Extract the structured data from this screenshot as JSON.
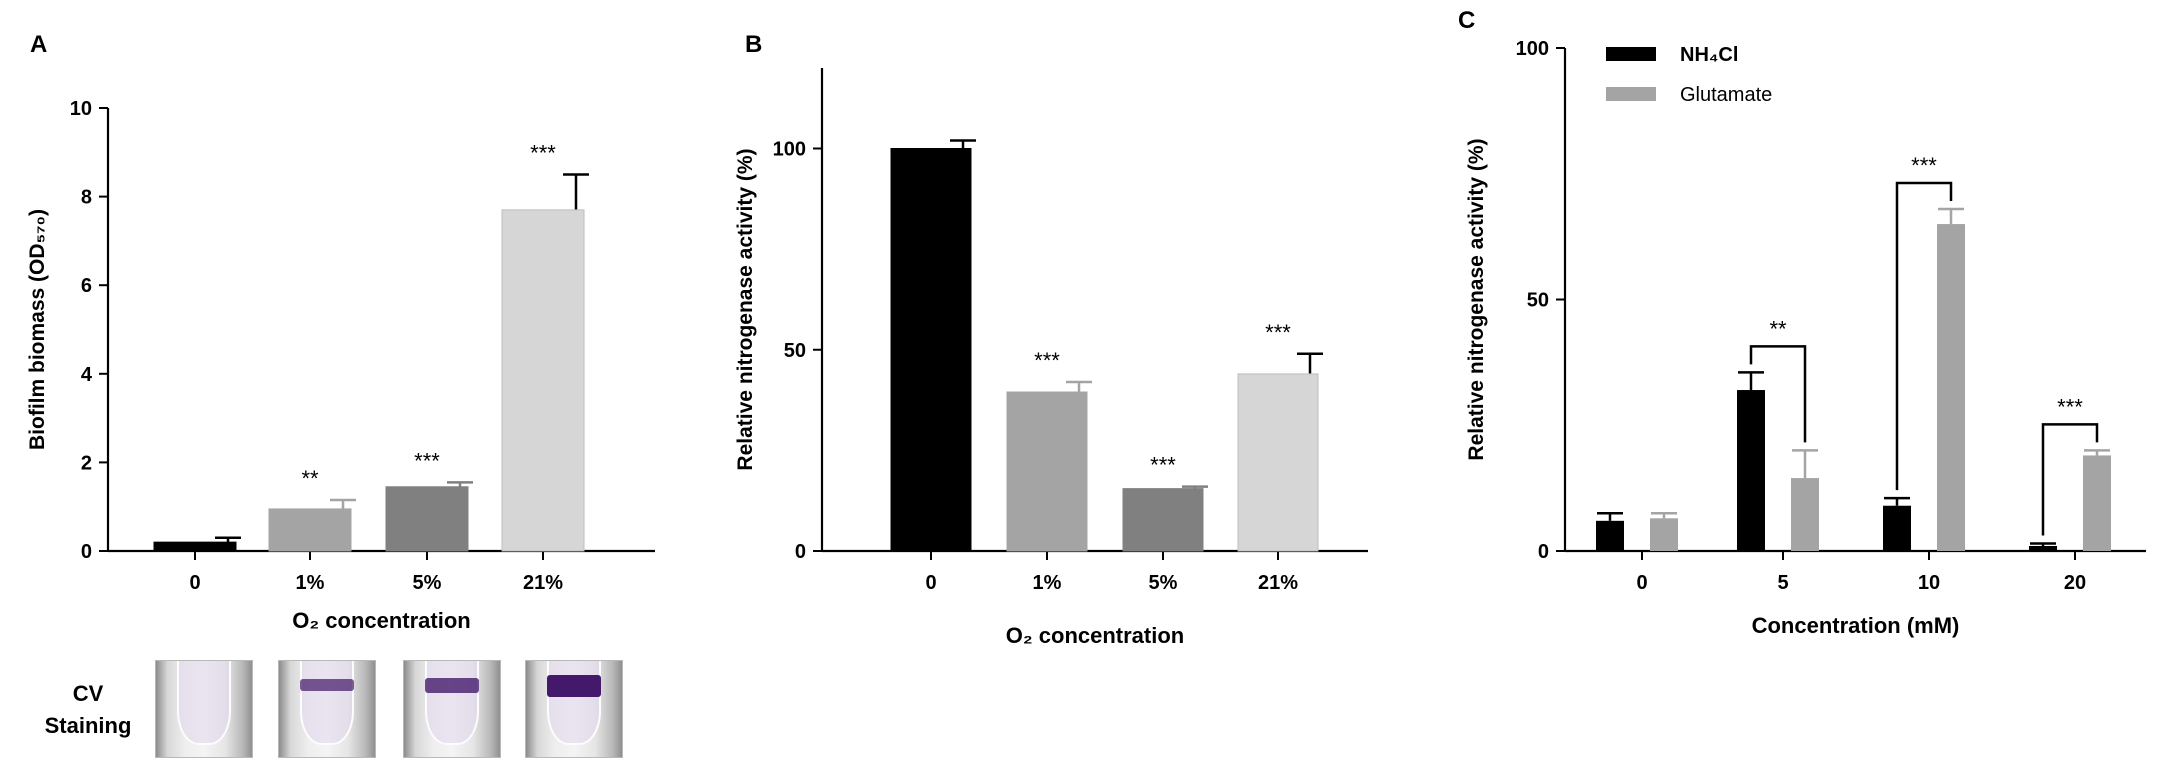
{
  "panels": {
    "a": "A",
    "b": "B",
    "c": "C"
  },
  "cv_staining": {
    "line1": "CV",
    "line2": "Staining",
    "tubes": [
      {
        "condition": "0",
        "stain_strength": 0
      },
      {
        "condition": "1%",
        "stain_strength": 0.45
      },
      {
        "condition": "5%",
        "stain_strength": 0.6
      },
      {
        "condition": "21%",
        "stain_strength": 1.0
      }
    ]
  },
  "chart_data": [
    {
      "panel": "A",
      "type": "bar",
      "categories": [
        "0",
        "1%",
        "5%",
        "21%"
      ],
      "values": [
        0.2,
        0.95,
        1.45,
        7.7
      ],
      "errors": [
        0.1,
        0.2,
        0.1,
        0.8
      ],
      "significance": [
        "",
        "**",
        "***",
        "***"
      ],
      "colors": [
        "#000000",
        "#a4a4a4",
        "#808080",
        "#d6d6d6"
      ],
      "xlabel": "O₂ concentration",
      "ylabel": "Biofilm biomass (OD₅₇₀)",
      "ylim": [
        0,
        10
      ],
      "yticks": [
        0,
        2,
        4,
        6,
        8,
        10
      ],
      "grid": false
    },
    {
      "panel": "B",
      "type": "bar",
      "categories": [
        "0",
        "1%",
        "5%",
        "21%"
      ],
      "values": [
        100,
        39.5,
        15.5,
        44
      ],
      "errors": [
        2,
        2.5,
        0.5,
        5
      ],
      "significance": [
        "",
        "***",
        "***",
        "***"
      ],
      "colors": [
        "#000000",
        "#a4a4a4",
        "#808080",
        "#d6d6d6"
      ],
      "xlabel": "O₂ concentration",
      "ylabel": "Relative nitrogenase activity (%)",
      "ylim": [
        0,
        120
      ],
      "yticks": [
        0,
        50,
        100
      ],
      "grid": false
    },
    {
      "panel": "C",
      "type": "bar",
      "categories": [
        "0",
        "5",
        "10",
        "20"
      ],
      "series": [
        {
          "name": "NH₄Cl",
          "color": "#000000",
          "values": [
            6,
            32,
            9,
            1
          ],
          "errors": [
            1.5,
            3.5,
            1.5,
            0.5
          ]
        },
        {
          "name": "Glutamate",
          "color": "#a4a4a4",
          "values": [
            6.5,
            14.5,
            65,
            19
          ],
          "errors": [
            1,
            5.5,
            3,
            1
          ]
        }
      ],
      "significance": [
        "",
        "**",
        "***",
        "***"
      ],
      "xlabel": "Concentration (mM)",
      "ylabel": "Relative nitrogenase activity (%)",
      "ylim": [
        0,
        100
      ],
      "yticks": [
        0,
        50,
        100
      ],
      "legend_position": "top-left",
      "grid": false
    }
  ]
}
